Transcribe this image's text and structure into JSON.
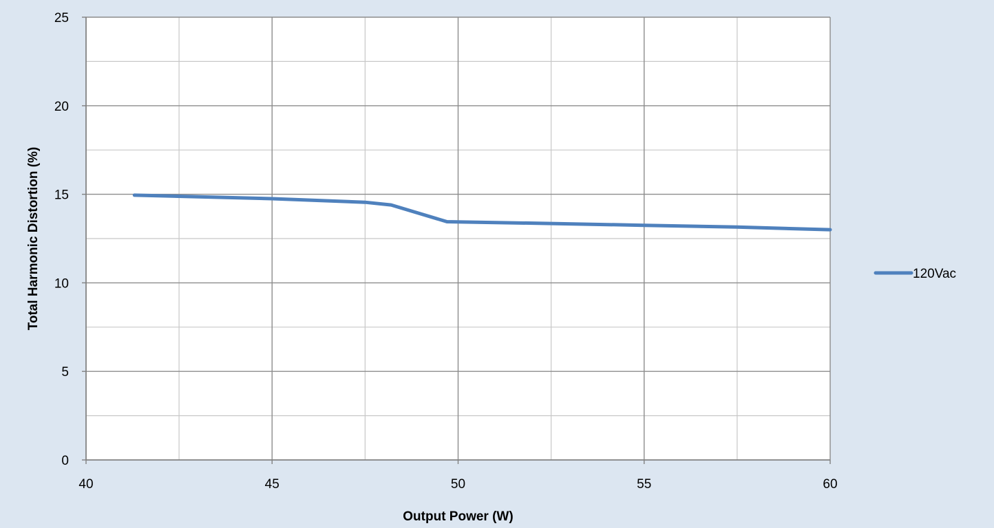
{
  "chart_data": {
    "type": "line",
    "title": "",
    "xlabel": "Output Power (W)",
    "ylabel": "Total Harmonic Distortion (%)",
    "xlim": [
      40,
      60
    ],
    "ylim": [
      0,
      25
    ],
    "x_ticks": [
      "40",
      "45",
      "50",
      "55",
      "60"
    ],
    "y_ticks": [
      "0",
      "5",
      "10",
      "15",
      "20",
      "25"
    ],
    "grid": true,
    "legend_position": "right",
    "background_color": "#dce6f1",
    "plot_background_color": "#ffffff",
    "series": [
      {
        "name": "120Vac",
        "color": "#4f81bd",
        "x": [
          41.3,
          45.0,
          47.5,
          48.2,
          49.7,
          52.5,
          55.0,
          57.5,
          60.0
        ],
        "y": [
          14.95,
          14.75,
          14.55,
          14.4,
          13.45,
          13.35,
          13.25,
          13.15,
          13.0
        ]
      }
    ]
  }
}
